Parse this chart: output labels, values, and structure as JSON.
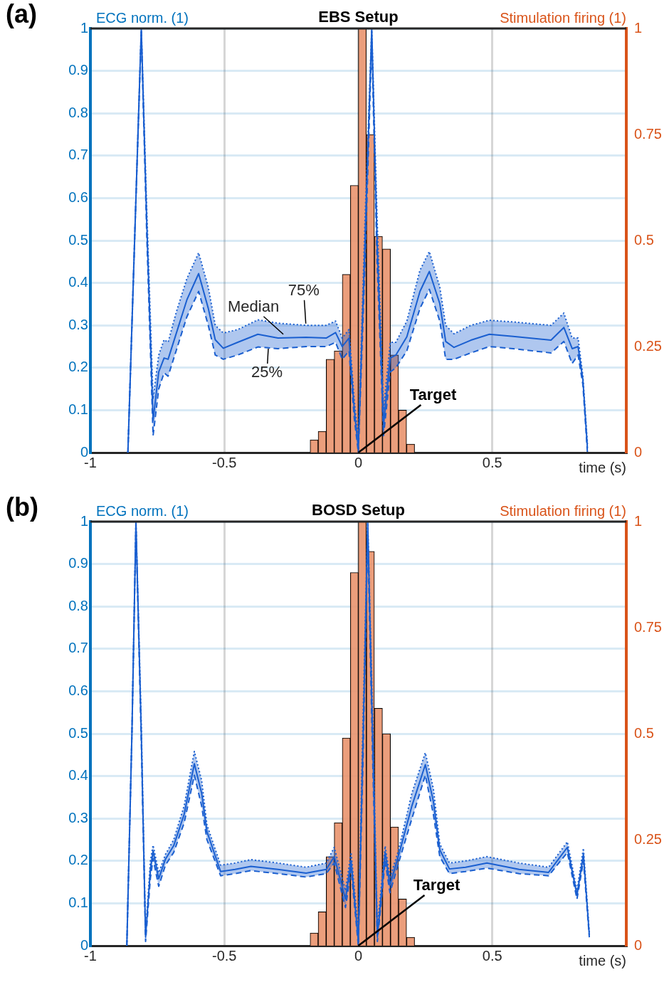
{
  "chart_data": [
    {
      "type": "line",
      "title": "EBS Setup",
      "ylabel": "ECG norm. (1)",
      "y2label": "Stimulation firing (1)",
      "xlabel": "time (s)",
      "xlim": [
        -1,
        1
      ],
      "xticks": [
        -1,
        -0.5,
        0,
        0.5
      ],
      "ylim": [
        0,
        1
      ],
      "yticks": [
        0,
        0.1,
        0.2,
        0.3,
        0.4,
        0.5,
        0.6,
        0.7,
        0.8,
        0.9,
        1
      ],
      "y2lim": [
        0,
        1
      ],
      "y2ticks": [
        0,
        0.25,
        0.5,
        0.75,
        1
      ],
      "grid": true,
      "annotations": [
        "(a)",
        {
          "text": "Median",
          "x": -0.28,
          "y": 0.279
        },
        {
          "text": "75%",
          "x": -0.196,
          "y": 0.304
        },
        {
          "text": "25%",
          "x": -0.336,
          "y": 0.245
        },
        {
          "text": "Target",
          "x": 0,
          "y": 0
        }
      ],
      "series": [
        {
          "type": "line",
          "color": "#1a5fd0",
          "line_style": "solid",
          "x": [
            -0.86,
            -0.835,
            -0.81,
            -0.79,
            -0.766,
            -0.745,
            -0.725,
            -0.71,
            -0.68,
            -0.64,
            -0.596,
            -0.56,
            -0.534,
            -0.504,
            -0.45,
            -0.375,
            -0.3,
            -0.195,
            -0.12,
            -0.085,
            -0.06,
            -0.035,
            -0.015,
            0,
            0.025,
            0.05,
            0.07,
            0.094,
            0.119,
            0.14,
            0.181,
            0.23,
            0.265,
            0.304,
            0.326,
            0.357,
            0.42,
            0.489,
            0.578,
            0.719,
            0.767,
            0.798,
            0.82,
            0.838,
            0.855
          ],
          "values": [
            0,
            0.5,
            1,
            0.55,
            0.076,
            0.19,
            0.223,
            0.22,
            0.28,
            0.36,
            0.422,
            0.34,
            0.266,
            0.246,
            0.26,
            0.279,
            0.27,
            0.272,
            0.27,
            0.283,
            0.25,
            0.27,
            0.1,
            0.01,
            0.5,
            1,
            0.5,
            0.067,
            0.223,
            0.23,
            0.273,
            0.38,
            0.427,
            0.351,
            0.262,
            0.248,
            0.265,
            0.279,
            0.274,
            0.265,
            0.295,
            0.245,
            0.25,
            0.172,
            0.01
          ],
          "lower": [
            0,
            0.5,
            0.99,
            0.52,
            0.04,
            0.15,
            0.188,
            0.18,
            0.24,
            0.32,
            0.38,
            0.3,
            0.23,
            0.22,
            0.23,
            0.249,
            0.245,
            0.25,
            0.25,
            0.26,
            0.22,
            0.24,
            0.08,
            0,
            0.45,
            0.97,
            0.45,
            0.04,
            0.19,
            0.2,
            0.24,
            0.34,
            0.385,
            0.31,
            0.22,
            0.22,
            0.235,
            0.25,
            0.245,
            0.235,
            0.262,
            0.21,
            0.23,
            0.16,
            0
          ],
          "upper": [
            0,
            0.5,
            1,
            0.58,
            0.126,
            0.23,
            0.266,
            0.26,
            0.33,
            0.41,
            0.471,
            0.39,
            0.3,
            0.282,
            0.29,
            0.313,
            0.305,
            0.3,
            0.3,
            0.31,
            0.27,
            0.29,
            0.12,
            0.03,
            0.55,
            1,
            0.55,
            0.1,
            0.26,
            0.26,
            0.31,
            0.43,
            0.474,
            0.39,
            0.3,
            0.28,
            0.3,
            0.312,
            0.308,
            0.3,
            0.329,
            0.27,
            0.27,
            0.18,
            0.02
          ]
        },
        {
          "type": "line",
          "color": "#1a5fd0",
          "line_style": "dotted",
          "x": [
            -0.86,
            -0.835,
            -0.81,
            -0.79,
            -0.766,
            -0.745,
            -0.725,
            -0.71,
            -0.68,
            -0.64,
            -0.596,
            -0.56,
            -0.534,
            -0.504,
            -0.45,
            -0.375,
            -0.3,
            -0.195,
            -0.12,
            -0.085,
            -0.06,
            -0.035,
            -0.015,
            0,
            0.025,
            0.05,
            0.07,
            0.094,
            0.119,
            0.14,
            0.181,
            0.23,
            0.265,
            0.304,
            0.326,
            0.357,
            0.42,
            0.489,
            0.578,
            0.719,
            0.767,
            0.798,
            0.82,
            0.838,
            0.855
          ],
          "values": [
            0,
            0.5,
            1,
            0.58,
            0.126,
            0.23,
            0.266,
            0.26,
            0.33,
            0.41,
            0.471,
            0.39,
            0.3,
            0.282,
            0.29,
            0.313,
            0.305,
            0.3,
            0.3,
            0.31,
            0.27,
            0.29,
            0.12,
            0.03,
            0.55,
            1,
            0.55,
            0.1,
            0.26,
            0.26,
            0.31,
            0.43,
            0.474,
            0.39,
            0.3,
            0.28,
            0.3,
            0.312,
            0.308,
            0.3,
            0.329,
            0.27,
            0.27,
            0.18,
            0.02
          ]
        },
        {
          "type": "line",
          "color": "#1a5fd0",
          "line_style": "dashed",
          "x": [
            -0.86,
            -0.835,
            -0.81,
            -0.79,
            -0.766,
            -0.745,
            -0.725,
            -0.71,
            -0.68,
            -0.64,
            -0.596,
            -0.56,
            -0.534,
            -0.504,
            -0.45,
            -0.375,
            -0.3,
            -0.195,
            -0.12,
            -0.085,
            -0.06,
            -0.035,
            -0.015,
            0,
            0.025,
            0.05,
            0.07,
            0.094,
            0.119,
            0.14,
            0.181,
            0.23,
            0.265,
            0.304,
            0.326,
            0.357,
            0.42,
            0.489,
            0.578,
            0.719,
            0.767,
            0.798,
            0.82,
            0.838,
            0.855
          ],
          "values": [
            0,
            0.5,
            0.99,
            0.52,
            0.04,
            0.15,
            0.188,
            0.18,
            0.24,
            0.32,
            0.38,
            0.3,
            0.23,
            0.22,
            0.23,
            0.249,
            0.245,
            0.25,
            0.25,
            0.26,
            0.22,
            0.24,
            0.08,
            0,
            0.45,
            0.97,
            0.45,
            0.04,
            0.19,
            0.2,
            0.24,
            0.34,
            0.385,
            0.31,
            0.22,
            0.22,
            0.235,
            0.25,
            0.245,
            0.235,
            0.262,
            0.21,
            0.23,
            0.16,
            0
          ]
        },
        {
          "type": "histogram",
          "axis": "y2",
          "color": "#e8916a",
          "bins": [
            -0.18,
            -0.15,
            -0.12,
            -0.09,
            -0.06,
            -0.03,
            0,
            0.03,
            0.06,
            0.09,
            0.12,
            0.15,
            0.18,
            0.21
          ],
          "values": [
            0.03,
            0.05,
            0.22,
            0.24,
            0.42,
            0.63,
            1,
            0.75,
            0.51,
            0.48,
            0.23,
            0.1,
            0.02
          ]
        }
      ]
    },
    {
      "type": "line",
      "title": "BOSD Setup",
      "ylabel": "ECG norm. (1)",
      "y2label": "Stimulation firing (1)",
      "xlabel": "time (s)",
      "xlim": [
        -1,
        1
      ],
      "xticks": [
        -1,
        -0.5,
        0,
        0.5
      ],
      "ylim": [
        0,
        1
      ],
      "yticks": [
        0,
        0.1,
        0.2,
        0.3,
        0.4,
        0.5,
        0.6,
        0.7,
        0.8,
        0.9,
        1
      ],
      "y2lim": [
        0,
        1
      ],
      "y2ticks": [
        0,
        0.25,
        0.5,
        0.75,
        1
      ],
      "grid": true,
      "annotations": [
        "(b)",
        {
          "text": "Target",
          "x": 0,
          "y": 0
        }
      ],
      "series": [
        {
          "type": "line",
          "color": "#1a5fd0",
          "line_style": "solid",
          "x": [
            -0.864,
            -0.845,
            -0.83,
            -0.81,
            -0.794,
            -0.776,
            -0.766,
            -0.745,
            -0.72,
            -0.689,
            -0.65,
            -0.612,
            -0.585,
            -0.565,
            -0.514,
            -0.46,
            -0.401,
            -0.3,
            -0.195,
            -0.12,
            -0.09,
            -0.048,
            -0.027,
            0,
            0.018,
            0.035,
            0.053,
            0.071,
            0.1,
            0.118,
            0.15,
            0.2,
            0.25,
            0.28,
            0.304,
            0.34,
            0.4,
            0.48,
            0.6,
            0.71,
            0.78,
            0.816,
            0.84,
            0.862
          ],
          "values": [
            0,
            0.5,
            1,
            0.5,
            0.02,
            0.18,
            0.223,
            0.158,
            0.204,
            0.236,
            0.31,
            0.429,
            0.36,
            0.269,
            0.175,
            0.18,
            0.187,
            0.18,
            0.171,
            0.18,
            0.21,
            0.11,
            0.2,
            0.01,
            0.5,
            1,
            0.5,
            0.02,
            0.22,
            0.143,
            0.212,
            0.33,
            0.427,
            0.34,
            0.226,
            0.181,
            0.185,
            0.195,
            0.18,
            0.173,
            0.232,
            0.12,
            0.215,
            0.025
          ],
          "lower": [
            0,
            0.5,
            0.99,
            0.48,
            0.01,
            0.16,
            0.205,
            0.14,
            0.19,
            0.22,
            0.29,
            0.402,
            0.33,
            0.25,
            0.165,
            0.17,
            0.177,
            0.17,
            0.162,
            0.17,
            0.195,
            0.09,
            0.18,
            0,
            0.45,
            0.97,
            0.45,
            0.01,
            0.2,
            0.125,
            0.195,
            0.3,
            0.402,
            0.31,
            0.21,
            0.17,
            0.175,
            0.183,
            0.17,
            0.165,
            0.22,
            0.11,
            0.2,
            0.02
          ],
          "upper": [
            0,
            0.5,
            1,
            0.52,
            0.03,
            0.2,
            0.237,
            0.172,
            0.215,
            0.25,
            0.33,
            0.458,
            0.39,
            0.285,
            0.19,
            0.195,
            0.203,
            0.195,
            0.185,
            0.195,
            0.232,
            0.13,
            0.22,
            0.03,
            0.55,
            1,
            0.55,
            0.04,
            0.235,
            0.16,
            0.225,
            0.36,
            0.455,
            0.37,
            0.24,
            0.195,
            0.2,
            0.21,
            0.195,
            0.185,
            0.245,
            0.13,
            0.23,
            0.03
          ]
        },
        {
          "type": "line",
          "color": "#1a5fd0",
          "line_style": "dotted",
          "x": [
            -0.864,
            -0.845,
            -0.83,
            -0.81,
            -0.794,
            -0.776,
            -0.766,
            -0.745,
            -0.72,
            -0.689,
            -0.65,
            -0.612,
            -0.585,
            -0.565,
            -0.514,
            -0.46,
            -0.401,
            -0.3,
            -0.195,
            -0.12,
            -0.09,
            -0.048,
            -0.027,
            0,
            0.018,
            0.035,
            0.053,
            0.071,
            0.1,
            0.118,
            0.15,
            0.2,
            0.25,
            0.28,
            0.304,
            0.34,
            0.4,
            0.48,
            0.6,
            0.71,
            0.78,
            0.816,
            0.84,
            0.862
          ],
          "values": [
            0,
            0.5,
            1,
            0.52,
            0.03,
            0.2,
            0.237,
            0.172,
            0.215,
            0.25,
            0.33,
            0.458,
            0.39,
            0.285,
            0.19,
            0.195,
            0.203,
            0.195,
            0.185,
            0.195,
            0.232,
            0.13,
            0.22,
            0.03,
            0.55,
            1,
            0.55,
            0.04,
            0.235,
            0.16,
            0.225,
            0.36,
            0.455,
            0.37,
            0.24,
            0.195,
            0.2,
            0.21,
            0.195,
            0.185,
            0.245,
            0.13,
            0.23,
            0.03
          ]
        },
        {
          "type": "line",
          "color": "#1a5fd0",
          "line_style": "dashed",
          "x": [
            -0.864,
            -0.845,
            -0.83,
            -0.81,
            -0.794,
            -0.776,
            -0.766,
            -0.745,
            -0.72,
            -0.689,
            -0.65,
            -0.612,
            -0.585,
            -0.565,
            -0.514,
            -0.46,
            -0.401,
            -0.3,
            -0.195,
            -0.12,
            -0.09,
            -0.048,
            -0.027,
            0,
            0.018,
            0.035,
            0.053,
            0.071,
            0.1,
            0.118,
            0.15,
            0.2,
            0.25,
            0.28,
            0.304,
            0.34,
            0.4,
            0.48,
            0.6,
            0.71,
            0.78,
            0.816,
            0.84,
            0.862
          ],
          "values": [
            0,
            0.5,
            0.99,
            0.48,
            0.01,
            0.16,
            0.205,
            0.14,
            0.19,
            0.22,
            0.29,
            0.402,
            0.33,
            0.25,
            0.165,
            0.17,
            0.177,
            0.17,
            0.162,
            0.17,
            0.195,
            0.09,
            0.18,
            0,
            0.45,
            0.97,
            0.45,
            0.01,
            0.2,
            0.125,
            0.195,
            0.3,
            0.402,
            0.31,
            0.21,
            0.17,
            0.175,
            0.183,
            0.17,
            0.165,
            0.22,
            0.11,
            0.2,
            0.02
          ]
        },
        {
          "type": "histogram",
          "axis": "y2",
          "color": "#e8916a",
          "bins": [
            -0.18,
            -0.15,
            -0.12,
            -0.09,
            -0.06,
            -0.03,
            0,
            0.03,
            0.06,
            0.09,
            0.12,
            0.15,
            0.18,
            0.21
          ],
          "values": [
            0.03,
            0.08,
            0.21,
            0.29,
            0.49,
            0.88,
            1,
            0.93,
            0.56,
            0.5,
            0.28,
            0.11,
            0.02
          ]
        }
      ]
    }
  ]
}
